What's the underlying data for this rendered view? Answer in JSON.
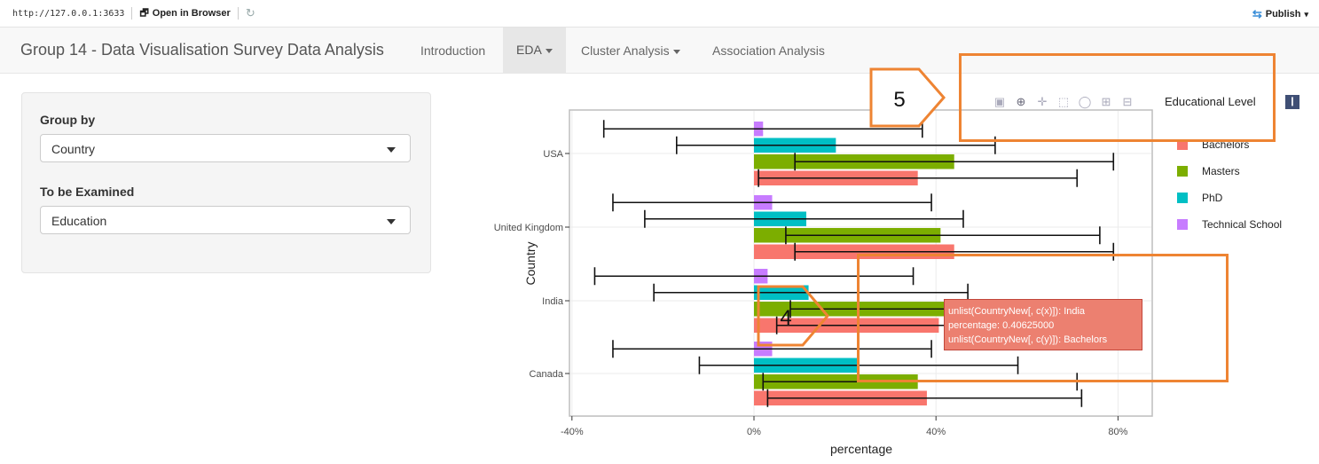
{
  "address_bar": {
    "url": "http://127.0.0.1:3633",
    "open_label": "Open in Browser",
    "publish_label": "Publish"
  },
  "navbar": {
    "brand": "Group 14 - Data Visualisation Survey Data Analysis",
    "items": [
      {
        "label": "Introduction",
        "dropdown": false,
        "active": false
      },
      {
        "label": "EDA",
        "dropdown": true,
        "active": true
      },
      {
        "label": "Cluster Analysis",
        "dropdown": true,
        "active": false
      },
      {
        "label": "Association Analysis",
        "dropdown": false,
        "active": false
      }
    ]
  },
  "sidebar": {
    "group_by_label": "Group by",
    "group_by_value": "Country",
    "examined_label": "To be Examined",
    "examined_value": "Education"
  },
  "chart_data": {
    "type": "bar",
    "orientation": "horizontal",
    "categories": [
      "USA",
      "United Kingdom",
      "India",
      "Canada"
    ],
    "xlabel": "percentage",
    "ylabel": "Country",
    "xlim": [
      -0.4,
      0.88
    ],
    "x_ticks": [
      "-40%",
      "0%",
      "40%",
      "80%"
    ],
    "legend_title": "Educational Level",
    "series": [
      {
        "name": "Bachelors",
        "color": "#f8766d",
        "values": [
          0.36,
          0.44,
          0.40625,
          0.38
        ],
        "error": [
          [
            0.01,
            0.71
          ],
          [
            0.09,
            0.79
          ],
          [
            0.05,
            0.77
          ],
          [
            0.03,
            0.72
          ]
        ]
      },
      {
        "name": "Masters",
        "color": "#7cae00",
        "values": [
          0.44,
          0.41,
          0.42,
          0.36
        ],
        "error": [
          [
            0.09,
            0.79
          ],
          [
            0.07,
            0.76
          ],
          [
            0.08,
            0.76
          ],
          [
            0.02,
            0.71
          ]
        ]
      },
      {
        "name": "PhD",
        "color": "#00bfc4",
        "values": [
          0.18,
          0.115,
          0.12,
          0.23
        ],
        "error": [
          [
            -0.17,
            0.53
          ],
          [
            -0.24,
            0.46
          ],
          [
            -0.22,
            0.47
          ],
          [
            -0.12,
            0.58
          ]
        ]
      },
      {
        "name": "Technical School",
        "color": "#c77cff",
        "values": [
          0.02,
          0.04,
          0.03,
          0.04
        ],
        "error": [
          [
            -0.33,
            0.37
          ],
          [
            -0.31,
            0.39
          ],
          [
            -0.35,
            0.35
          ],
          [
            -0.31,
            0.39
          ]
        ]
      }
    ]
  },
  "tooltip": {
    "line1": "unlist(CountryNew[, c(x)]): India",
    "line2": "percentage: 0.40625000",
    "line3": "unlist(CountryNew[, c(y)]): Bachelors",
    "color": "#ec8070"
  },
  "annotations": {
    "label_5": "5",
    "label_4": "4",
    "color": "#ee8433"
  }
}
